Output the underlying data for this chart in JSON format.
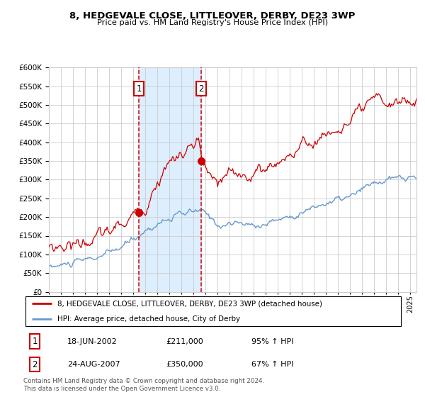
{
  "title1": "8, HEDGEVALE CLOSE, LITTLEOVER, DERBY, DE23 3WP",
  "title2": "Price paid vs. HM Land Registry's House Price Index (HPI)",
  "legend_line1": "8, HEDGEVALE CLOSE, LITTLEOVER, DERBY, DE23 3WP (detached house)",
  "legend_line2": "HPI: Average price, detached house, City of Derby",
  "footnote": "Contains HM Land Registry data © Crown copyright and database right 2024.\nThis data is licensed under the Open Government Licence v3.0.",
  "transaction1_date": "18-JUN-2002",
  "transaction1_price": 211000,
  "transaction1_hpi": "95% ↑ HPI",
  "transaction2_date": "24-AUG-2007",
  "transaction2_price": 350000,
  "transaction2_hpi": "67% ↑ HPI",
  "sale1_x": 2002.46,
  "sale1_y": 211000,
  "sale2_x": 2007.64,
  "sale2_y": 350000,
  "vline1_x": 2002.46,
  "vline2_x": 2007.64,
  "shade_x1": 2002.46,
  "shade_x2": 2007.64,
  "ylim": [
    0,
    600000
  ],
  "xlim_left": 1995.0,
  "xlim_right": 2025.5,
  "red_color": "#cc0000",
  "blue_color": "#6699cc",
  "shade_color": "#ddeeff",
  "grid_color": "#cccccc",
  "bg_color": "#ffffff"
}
